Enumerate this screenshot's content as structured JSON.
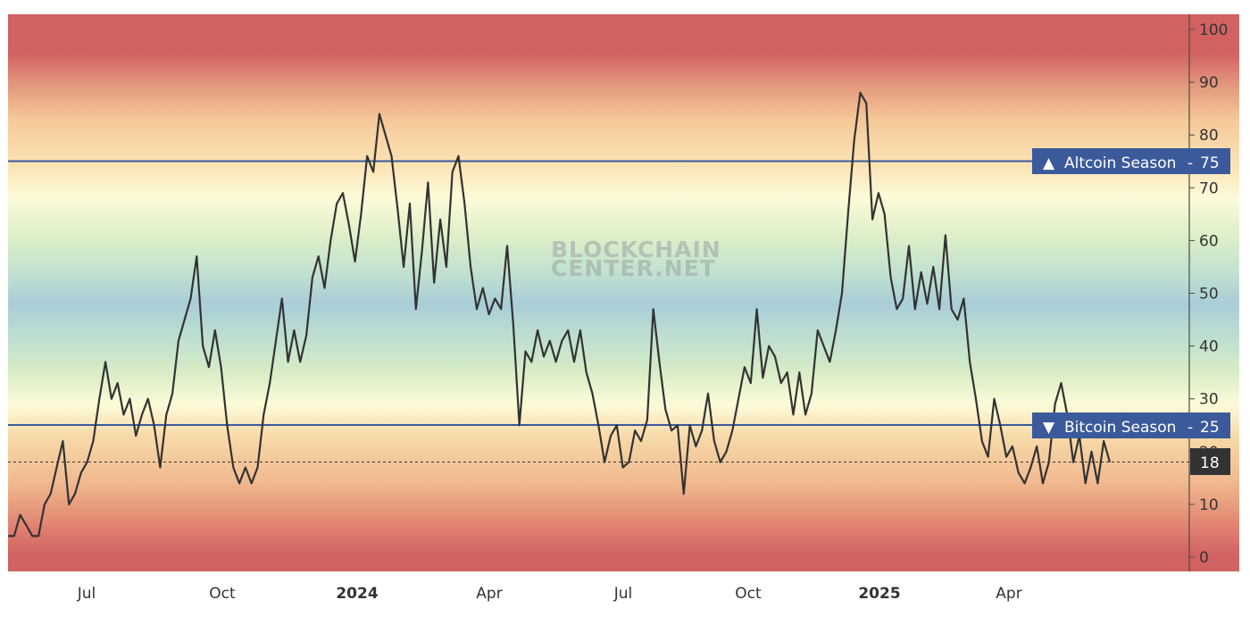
{
  "chart_data": {
    "type": "line",
    "title": "",
    "xlabel": "",
    "ylabel": "",
    "ylim": [
      0,
      100
    ],
    "y_ticks": [
      0,
      10,
      20,
      30,
      40,
      50,
      60,
      70,
      80,
      90,
      100
    ],
    "y_tick_labels": [
      "0",
      "10",
      "20",
      "30",
      "40",
      "50",
      "60",
      "70",
      "80",
      "90",
      "100"
    ],
    "x_tick_labels": [
      {
        "label": "Jul",
        "bold": false
      },
      {
        "label": "Oct",
        "bold": false
      },
      {
        "label": "2024",
        "bold": true
      },
      {
        "label": "Apr",
        "bold": false
      },
      {
        "label": "Jul",
        "bold": false
      },
      {
        "label": "Oct",
        "bold": false
      },
      {
        "label": "2025",
        "bold": true
      },
      {
        "label": "Apr",
        "bold": false
      }
    ],
    "x_range": "mid-2023 to mid-2025 (daily)",
    "grid": false,
    "background": "vertical color gradient: red (0-10, 90-100) → orange/peach → cream (~25-35, ~70-75) → green → light blue (~50)",
    "reference_lines": [
      {
        "label": "Altcoin Season",
        "value": 75,
        "marker": "up-triangle",
        "color": "#3a5a9b"
      },
      {
        "label": "Bitcoin Season",
        "value": 25,
        "marker": "down-triangle",
        "color": "#3a5a9b"
      }
    ],
    "current_value": {
      "value": 18,
      "style": "dotted line",
      "badge_color": "#333333"
    },
    "watermark": [
      "BLOCKCHAIN",
      "CENTER.NET"
    ],
    "series": [
      {
        "name": "Altcoin Season Index",
        "color": "#333333",
        "points": [
          [
            "Jun 2023",
            4
          ],
          [
            "Jun 2023",
            4
          ],
          [
            "Jun 2023",
            8
          ],
          [
            "Jun 2023",
            6
          ],
          [
            "Jun 2023",
            4
          ],
          [
            "Jun 2023",
            4
          ],
          [
            "Jun 2023",
            10
          ],
          [
            "Jun 2023",
            12
          ],
          [
            "Jun 2023",
            17
          ],
          [
            "Jun 2023",
            22
          ],
          [
            "Jun 2023",
            10
          ],
          [
            "Jul 2023",
            12
          ],
          [
            "Jul 2023",
            16
          ],
          [
            "Jul 2023",
            18
          ],
          [
            "Jul 2023",
            22
          ],
          [
            "Jul 2023",
            30
          ],
          [
            "Jul 2023",
            37
          ],
          [
            "Jul 2023",
            30
          ],
          [
            "Jul 2023",
            33
          ],
          [
            "Aug 2023",
            27
          ],
          [
            "Aug 2023",
            30
          ],
          [
            "Aug 2023",
            23
          ],
          [
            "Aug 2023",
            27
          ],
          [
            "Aug 2023",
            30
          ],
          [
            "Aug 2023",
            25
          ],
          [
            "Sep 2023",
            17
          ],
          [
            "Sep 2023",
            27
          ],
          [
            "Sep 2023",
            31
          ],
          [
            "Sep 2023",
            41
          ],
          [
            "Sep 2023",
            45
          ],
          [
            "Sep 2023",
            49
          ],
          [
            "Sep 2023",
            57
          ],
          [
            "Oct 2023",
            40
          ],
          [
            "Oct 2023",
            36
          ],
          [
            "Oct 2023",
            43
          ],
          [
            "Oct 2023",
            36
          ],
          [
            "Oct 2023",
            25
          ],
          [
            "Oct 2023",
            17
          ],
          [
            "Oct 2023",
            14
          ],
          [
            "Nov 2023",
            17
          ],
          [
            "Nov 2023",
            14
          ],
          [
            "Nov 2023",
            17
          ],
          [
            "Nov 2023",
            27
          ],
          [
            "Nov 2023",
            33
          ],
          [
            "Nov 2023",
            41
          ],
          [
            "Nov 2023",
            49
          ],
          [
            "Nov 2023",
            37
          ],
          [
            "Nov 2023",
            43
          ],
          [
            "Dec 2023",
            37
          ],
          [
            "Dec 2023",
            42
          ],
          [
            "Dec 2023",
            53
          ],
          [
            "Dec 2023",
            57
          ],
          [
            "Dec 2023",
            51
          ],
          [
            "Dec 2023",
            60
          ],
          [
            "Dec 2023",
            67
          ],
          [
            "Dec 2023",
            69
          ],
          [
            "Dec 2023",
            63
          ],
          [
            "Dec 2023",
            56
          ],
          [
            "Jan 2024",
            65
          ],
          [
            "Jan 2024",
            76
          ],
          [
            "Jan 2024",
            73
          ],
          [
            "Jan 2024",
            84
          ],
          [
            "Jan 2024",
            80
          ],
          [
            "Jan 2024",
            76
          ],
          [
            "Jan 2024",
            66
          ],
          [
            "Jan 2024",
            55
          ],
          [
            "Feb 2024",
            67
          ],
          [
            "Feb 2024",
            47
          ],
          [
            "Feb 2024",
            58
          ],
          [
            "Feb 2024",
            71
          ],
          [
            "Feb 2024",
            52
          ],
          [
            "Feb 2024",
            64
          ],
          [
            "Feb 2024",
            55
          ],
          [
            "Mar 2024",
            73
          ],
          [
            "Mar 2024",
            76
          ],
          [
            "Mar 2024",
            67
          ],
          [
            "Mar 2024",
            55
          ],
          [
            "Mar 2024",
            47
          ],
          [
            "Mar 2024",
            51
          ],
          [
            "Mar 2024",
            46
          ],
          [
            "Apr 2024",
            49
          ],
          [
            "Apr 2024",
            47
          ],
          [
            "Apr 2024",
            59
          ],
          [
            "Apr 2024",
            44
          ],
          [
            "Apr 2024",
            25
          ],
          [
            "Apr 2024",
            39
          ],
          [
            "Apr 2024",
            37
          ],
          [
            "May 2024",
            43
          ],
          [
            "May 2024",
            38
          ],
          [
            "May 2024",
            41
          ],
          [
            "May 2024",
            37
          ],
          [
            "May 2024",
            41
          ],
          [
            "May 2024",
            43
          ],
          [
            "May 2024",
            37
          ],
          [
            "Jun 2024",
            43
          ],
          [
            "Jun 2024",
            35
          ],
          [
            "Jun 2024",
            31
          ],
          [
            "Jun 2024",
            25
          ],
          [
            "Jun 2024",
            18
          ],
          [
            "Jun 2024",
            23
          ],
          [
            "Jun 2024",
            25
          ],
          [
            "Jul 2024",
            17
          ],
          [
            "Jul 2024",
            18
          ],
          [
            "Jul 2024",
            24
          ],
          [
            "Jul 2024",
            22
          ],
          [
            "Jul 2024",
            26
          ],
          [
            "Jul 2024",
            47
          ],
          [
            "Jul 2024",
            37
          ],
          [
            "Jul 2024",
            28
          ],
          [
            "Aug 2024",
            24
          ],
          [
            "Aug 2024",
            25
          ],
          [
            "Aug 2024",
            12
          ],
          [
            "Aug 2024",
            25
          ],
          [
            "Aug 2024",
            21
          ],
          [
            "Aug 2024",
            24
          ],
          [
            "Aug 2024",
            31
          ],
          [
            "Sep 2024",
            22
          ],
          [
            "Sep 2024",
            18
          ],
          [
            "Sep 2024",
            20
          ],
          [
            "Sep 2024",
            24
          ],
          [
            "Sep 2024",
            30
          ],
          [
            "Sep 2024",
            36
          ],
          [
            "Sep 2024",
            33
          ],
          [
            "Oct 2024",
            47
          ],
          [
            "Oct 2024",
            34
          ],
          [
            "Oct 2024",
            40
          ],
          [
            "Oct 2024",
            38
          ],
          [
            "Oct 2024",
            33
          ],
          [
            "Oct 2024",
            35
          ],
          [
            "Oct 2024",
            27
          ],
          [
            "Nov 2024",
            35
          ],
          [
            "Nov 2024",
            27
          ],
          [
            "Nov 2024",
            31
          ],
          [
            "Nov 2024",
            43
          ],
          [
            "Nov 2024",
            40
          ],
          [
            "Nov 2024",
            37
          ],
          [
            "Nov 2024",
            43
          ],
          [
            "Nov 2024",
            50
          ],
          [
            "Dec 2024",
            65
          ],
          [
            "Dec 2024",
            79
          ],
          [
            "Dec 2024",
            88
          ],
          [
            "Dec 2024",
            86
          ],
          [
            "Dec 2024",
            64
          ],
          [
            "Dec 2024",
            69
          ],
          [
            "Dec 2024",
            65
          ],
          [
            "Jan 2025",
            53
          ],
          [
            "Jan 2025",
            47
          ],
          [
            "Jan 2025",
            49
          ],
          [
            "Jan 2025",
            59
          ],
          [
            "Jan 2025",
            47
          ],
          [
            "Jan 2025",
            54
          ],
          [
            "Jan 2025",
            48
          ],
          [
            "Feb 2025",
            55
          ],
          [
            "Feb 2025",
            47
          ],
          [
            "Feb 2025",
            61
          ],
          [
            "Feb 2025",
            47
          ],
          [
            "Feb 2025",
            45
          ],
          [
            "Feb 2025",
            49
          ],
          [
            "Mar 2025",
            37
          ],
          [
            "Mar 2025",
            30
          ],
          [
            "Mar 2025",
            22
          ],
          [
            "Mar 2025",
            19
          ],
          [
            "Mar 2025",
            30
          ],
          [
            "Mar 2025",
            25
          ],
          [
            "Apr 2025",
            19
          ],
          [
            "Apr 2025",
            21
          ],
          [
            "Apr 2025",
            16
          ],
          [
            "Apr 2025",
            14
          ],
          [
            "Apr 2025",
            17
          ],
          [
            "Apr 2025",
            21
          ],
          [
            "May 2025",
            14
          ],
          [
            "May 2025",
            18
          ],
          [
            "May 2025",
            29
          ],
          [
            "May 2025",
            33
          ],
          [
            "May 2025",
            27
          ],
          [
            "May 2025",
            18
          ],
          [
            "Jun 2025",
            23
          ],
          [
            "Jun 2025",
            14
          ],
          [
            "Jun 2025",
            20
          ],
          [
            "Jun 2025",
            14
          ],
          [
            "Jun 2025",
            22
          ],
          [
            "Jun 2025",
            18
          ]
        ]
      }
    ]
  },
  "ui": {
    "altcoin_badge": {
      "arrow": "▲",
      "label": "Altcoin Season",
      "value": "75"
    },
    "bitcoin_badge": {
      "arrow": "▼",
      "label": "Bitcoin Season",
      "value": "25"
    },
    "current_badge": {
      "value": "18"
    },
    "watermark_line1": "BLOCKCHAIN",
    "watermark_line2": "CENTER.NET",
    "colors": {
      "line": "#333333",
      "reference": "#3a5a9b",
      "current_badge": "#333333",
      "red_zone": "#d26262",
      "peach_zone": "#f5c99a",
      "cream_zone": "#fbf6d0",
      "green_zone": "#c5e3c5",
      "blue_zone": "#a9cdd9"
    }
  }
}
